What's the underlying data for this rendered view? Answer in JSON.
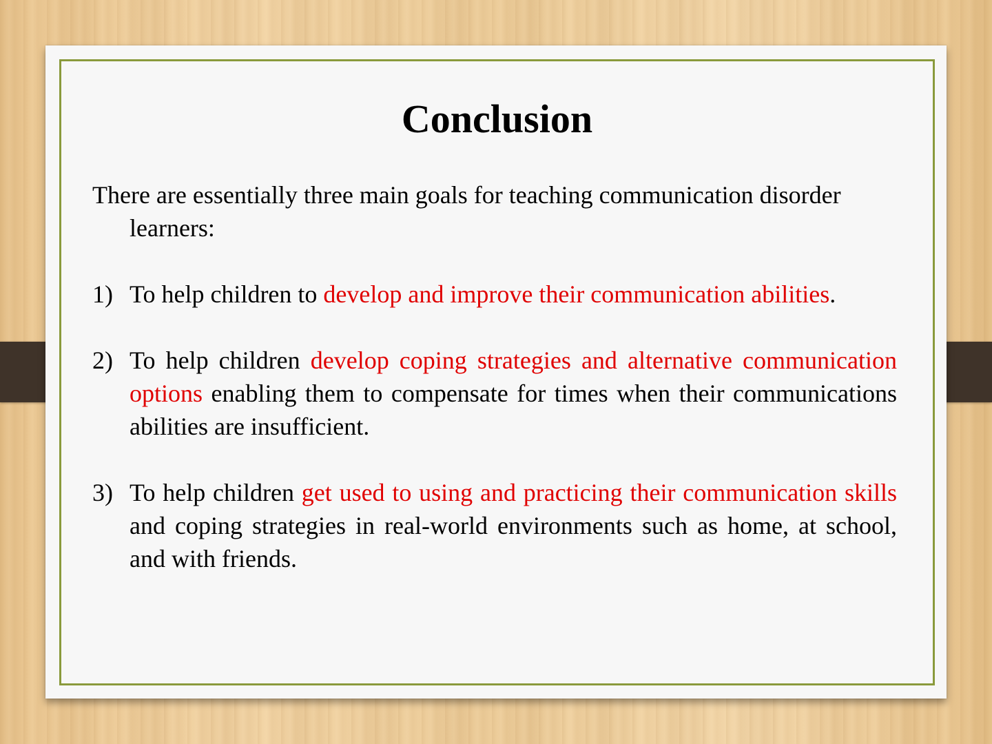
{
  "slide": {
    "title": "Conclusion",
    "intro": "There are essentially three main goals for teaching communication disorder learners:",
    "goals": [
      {
        "number": "1)",
        "lead": "To help children to ",
        "highlight": "develop and improve their communication abilities",
        "tail": "."
      },
      {
        "number": "2)",
        "lead": "To help children ",
        "highlight": "develop coping strategies and alternative communication options",
        "tail": " enabling them to compensate for times when their communications abilities are insufficient."
      },
      {
        "number": "3)",
        "lead": "To help children ",
        "highlight": "get used to using and practicing their communication skills",
        "tail": " and coping strategies in real-world environments such as home, at school, and with friends."
      }
    ]
  },
  "colors": {
    "highlight": "#e00000",
    "frame_border": "#8a9a3c",
    "strap": "#3f3329"
  }
}
